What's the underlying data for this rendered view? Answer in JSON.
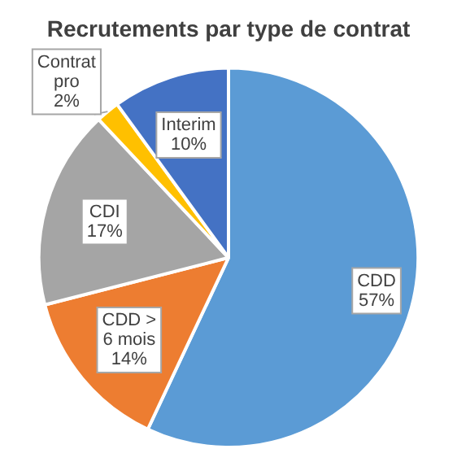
{
  "chart_data": {
    "type": "pie",
    "title": "Recrutements par type de contrat",
    "categories": [
      "CDD",
      "CDD > 6 mois",
      "CDI",
      "Contrat pro",
      "Interim"
    ],
    "values": [
      57,
      14,
      17,
      2,
      10
    ],
    "colors": [
      "#5b9bd5",
      "#ed7d31",
      "#a5a5a5",
      "#ffc000",
      "#4472c4"
    ],
    "value_labels": [
      "57%",
      "14%",
      "17%",
      "2%",
      "10%"
    ],
    "legend": false
  }
}
